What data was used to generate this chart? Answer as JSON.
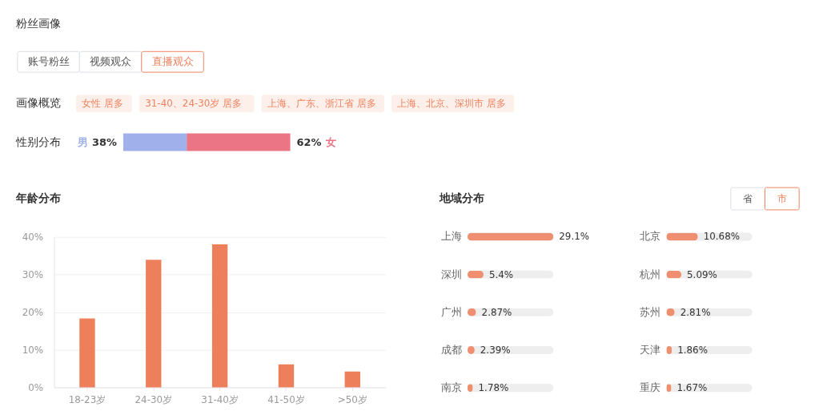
{
  "chart_data": [
    {
      "type": "other",
      "title": "粉丝画像",
      "annotations": [
        "账号粉丝",
        "视频观众",
        "直播观众",
        "画像概览",
        "女性 居多",
        "31-40、24-30岁 居多",
        "上海、广东、浙江省 居多",
        "上海、北京、深圳市 居多"
      ]
    },
    {
      "type": "bar",
      "orientation": "horizontal",
      "stacked": true,
      "title": "性别分布",
      "categories": [
        null
      ],
      "series": [
        {
          "name": "男",
          "color": "#9fb0ea",
          "values": [
            38
          ],
          "value_labels": [
            "38%"
          ]
        },
        {
          "name": "女",
          "color": "#eb7584",
          "values": [
            62
          ],
          "value_labels": [
            "62%"
          ]
        }
      ],
      "tick_labels": false
    },
    {
      "type": "bar",
      "title": "年龄分布",
      "categories": [
        "18-23岁",
        "24-30岁",
        "31-40岁",
        "41-50岁",
        ">50岁"
      ],
      "values": [
        18.3,
        33.9,
        38.0,
        6.1,
        4.2
      ],
      "color": "#ee7f5b",
      "ylim": [
        0,
        40
      ],
      "yticks": [
        {
          "value": 0,
          "label": "0%"
        },
        {
          "value": 10,
          "label": "10%"
        },
        {
          "value": 20,
          "label": "20%"
        },
        {
          "value": 30,
          "label": "30%"
        },
        {
          "value": 40,
          "label": "40%"
        }
      ],
      "grid": "y"
    },
    {
      "type": "bar",
      "orientation": "horizontal",
      "title": "地域分布",
      "annotations": [
        "省",
        "市"
      ],
      "categories": [
        "上海",
        "深圳",
        "广州",
        "成都",
        "南京"
      ],
      "values": [
        29.1,
        5.4,
        2.87,
        2.39,
        1.78
      ],
      "value_labels": [
        "29.1%",
        "5.4%",
        "2.87%",
        "2.39%",
        "1.78%"
      ],
      "color": "#f08f6f",
      "xlim": [
        0,
        29.1
      ],
      "tick_labels": "y"
    },
    {
      "type": "bar",
      "orientation": "horizontal",
      "categories": [
        "北京",
        "杭州",
        "苏州",
        "天津",
        "重庆"
      ],
      "values": [
        10.68,
        5.09,
        2.81,
        1.86,
        1.67
      ],
      "value_labels": [
        "10.68%",
        "5.09%",
        "2.81%",
        "1.86%",
        "1.67%"
      ],
      "color": "#f08f6f",
      "tick_labels": "y"
    }
  ]
}
